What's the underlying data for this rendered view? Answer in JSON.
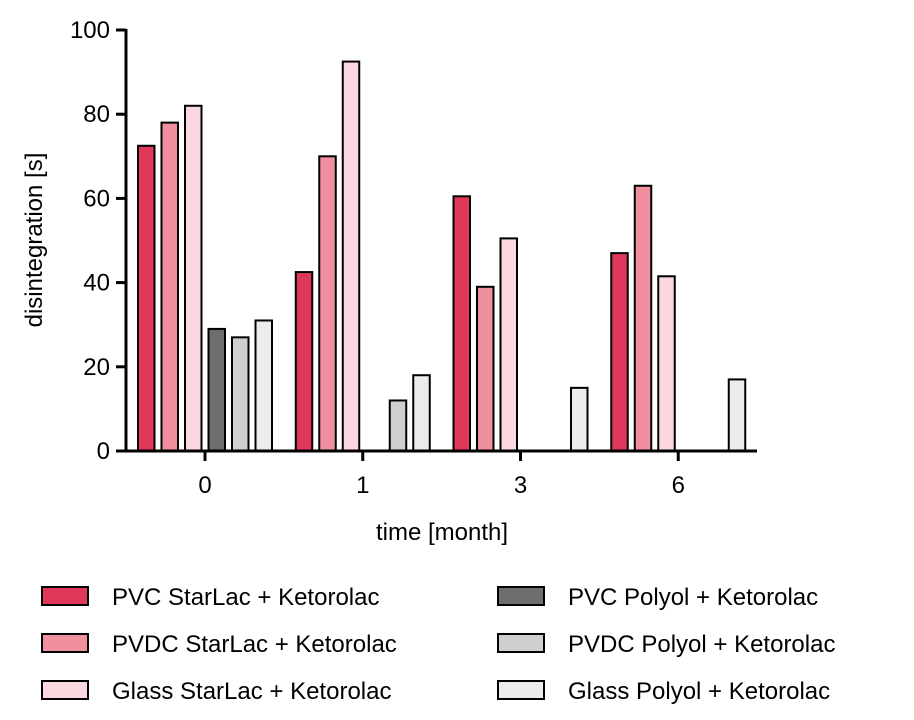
{
  "chart_data": {
    "type": "bar",
    "title": "",
    "xlabel": "time [month]",
    "ylabel": "disintegration [s]",
    "ylim": [
      0,
      100
    ],
    "yticks": [
      "0",
      "20",
      "40",
      "60",
      "80",
      "100"
    ],
    "categories": [
      "0",
      "1",
      "3",
      "6"
    ],
    "grid": false,
    "legend_position": "bottom",
    "series": [
      {
        "name": "PVC StarLac + Ketorolac",
        "color": "#e0385a",
        "values": [
          72.5,
          42.5,
          60.5,
          47
        ]
      },
      {
        "name": "PVDC StarLac + Ketorolac",
        "color": "#f0909e",
        "values": [
          78,
          70,
          39,
          63
        ]
      },
      {
        "name": "Glass StarLac + Ketorolac",
        "color": "#fbd8df",
        "values": [
          82,
          92.5,
          50.5,
          41.5
        ]
      },
      {
        "name": "PVC Polyol + Ketorolac",
        "color": "#6e6e6e",
        "values": [
          29,
          null,
          null,
          null
        ]
      },
      {
        "name": "PVDC Polyol + Ketorolac",
        "color": "#cfcfcf",
        "values": [
          27,
          12,
          null,
          null
        ]
      },
      {
        "name": "Glass Polyol + Ketorolac",
        "color": "#ececec",
        "values": [
          31,
          18,
          15,
          17
        ]
      }
    ]
  }
}
